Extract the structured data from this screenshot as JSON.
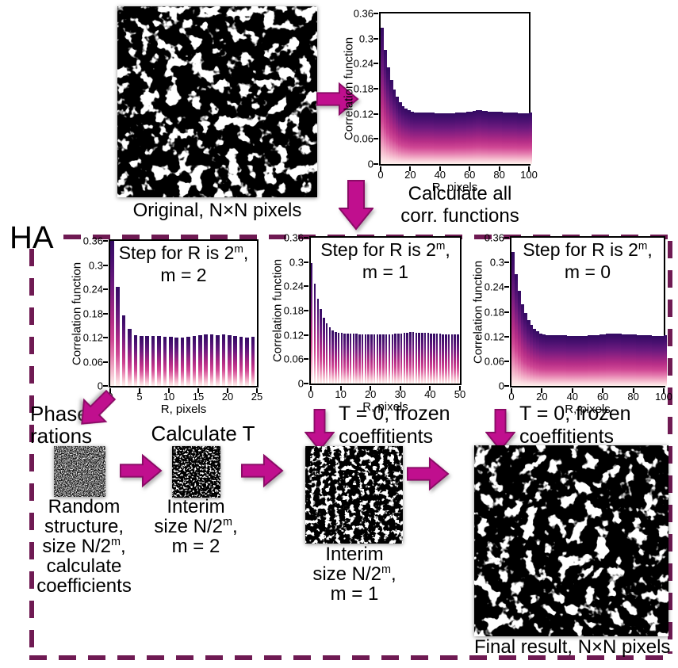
{
  "colors": {
    "arrow_fill": "#c00f8e",
    "arrow_stroke": "#8a0b66",
    "dashed_border": "#6f1a53",
    "bar_top": "#330b62",
    "bar_mid": "#b62e87",
    "bar_bottom": "#fdf0ec"
  },
  "top_section": {
    "original_label": "Original, N×N pixels",
    "calc_line1": "Calculate all",
    "calc_line2": "corr. functions"
  },
  "ha_box": {
    "label": "HA",
    "phase_line1": "Phase",
    "phase_line2": "rations",
    "calc_t_label": "Calculate T",
    "t0_line1": "T = 0, frozen",
    "t0_line2": "coeffitients",
    "random_label_lines": [
      {
        "pre": "Random"
      },
      {
        "pre": "structure,"
      },
      {
        "pre": "size N/2",
        "sup": "m",
        "post": ","
      },
      {
        "pre": "calculate"
      },
      {
        "pre": "coefficients"
      }
    ],
    "interim2_label_lines": [
      {
        "pre": "Interim"
      },
      {
        "pre": "size N/2",
        "sup": "m",
        "post": ","
      },
      {
        "pre": "m = 2"
      }
    ],
    "interim1_label_lines": [
      {
        "pre": "Interim"
      },
      {
        "pre": "size N/2",
        "sup": "m",
        "post": ","
      },
      {
        "pre": "m = 1"
      }
    ],
    "final_label": "Final result, N×N pixels"
  },
  "chart_data": [
    {
      "id": "all",
      "type": "bar",
      "title": null,
      "ylabel": "Correlation function",
      "xlabel": "R, pixels",
      "ylim": [
        0,
        0.36
      ],
      "y_ticks": [
        0,
        0.06,
        0.12,
        0.18,
        0.24,
        0.3,
        0.36
      ],
      "x_ticks": [
        0,
        20,
        40,
        60,
        80,
        100
      ],
      "x_range": [
        0,
        100
      ],
      "x_step": 2,
      "bar_gap_frac": 0,
      "values": [
        0.325,
        0.272,
        0.232,
        0.2,
        0.178,
        0.161,
        0.148,
        0.139,
        0.132,
        0.128,
        0.126,
        0.124,
        0.124,
        0.123,
        0.123,
        0.123,
        0.123,
        0.123,
        0.122,
        0.122,
        0.122,
        0.122,
        0.122,
        0.122,
        0.122,
        0.123,
        0.123,
        0.124,
        0.124,
        0.125,
        0.126,
        0.127,
        0.128,
        0.128,
        0.127,
        0.127,
        0.126,
        0.126,
        0.126,
        0.125,
        0.125,
        0.124,
        0.124,
        0.123,
        0.123,
        0.123,
        0.122,
        0.122,
        0.122,
        0.122,
        0.123
      ]
    },
    {
      "id": "m2",
      "type": "bar",
      "title": {
        "pre": "Step for R is 2",
        "sup": "m",
        "post": ",",
        "line2": "m = 2"
      },
      "ylabel": "Correlation function",
      "xlabel": "R, pixels",
      "ylim": [
        0,
        0.36
      ],
      "y_ticks": [
        0,
        0.06,
        0.12,
        0.18,
        0.24,
        0.3,
        0.36
      ],
      "x_ticks": [
        0,
        5,
        10,
        15,
        20,
        25
      ],
      "x_range": [
        0,
        25
      ],
      "x_step": 1,
      "bar_gap_frac": 0.38,
      "values": [
        0.36,
        0.245,
        0.175,
        0.141,
        0.126,
        0.124,
        0.124,
        0.123,
        0.123,
        0.122,
        0.122,
        0.121,
        0.121,
        0.122,
        0.124,
        0.126,
        0.127,
        0.127,
        0.126,
        0.127,
        0.126,
        0.124,
        0.122,
        0.121,
        0.122
      ]
    },
    {
      "id": "m1",
      "type": "bar",
      "title": {
        "pre": "Step for R is 2",
        "sup": "m",
        "post": ",",
        "line2": "m = 1"
      },
      "ylabel": "Correlation function",
      "xlabel": "R, pixels",
      "ylim": [
        0,
        0.36
      ],
      "y_ticks": [
        0,
        0.06,
        0.12,
        0.18,
        0.24,
        0.3,
        0.36
      ],
      "x_ticks": [
        0,
        10,
        20,
        30,
        40,
        50
      ],
      "x_range": [
        0,
        50
      ],
      "x_step": 1,
      "bar_gap_frac": 0.34,
      "values": [
        0.298,
        0.246,
        0.21,
        0.183,
        0.163,
        0.148,
        0.138,
        0.131,
        0.128,
        0.126,
        0.125,
        0.124,
        0.124,
        0.123,
        0.123,
        0.123,
        0.122,
        0.122,
        0.122,
        0.122,
        0.122,
        0.121,
        0.121,
        0.121,
        0.121,
        0.122,
        0.122,
        0.122,
        0.123,
        0.123,
        0.124,
        0.125,
        0.126,
        0.127,
        0.127,
        0.126,
        0.126,
        0.126,
        0.125,
        0.125,
        0.124,
        0.124,
        0.123,
        0.123,
        0.122,
        0.122,
        0.122,
        0.121,
        0.121,
        0.122
      ]
    },
    {
      "id": "m0",
      "type": "bar",
      "title": {
        "pre": "Step for R is 2",
        "sup": "m",
        "post": ",",
        "line2": "m = 0"
      },
      "ylabel": "Correlation function",
      "xlabel": "R, pixels",
      "ylim": [
        0,
        0.36
      ],
      "y_ticks": [
        0,
        0.06,
        0.12,
        0.18,
        0.24,
        0.3,
        0.36
      ],
      "x_ticks": [
        0,
        20,
        40,
        60,
        80,
        100
      ],
      "x_range": [
        0,
        100
      ],
      "x_step": 2,
      "bar_gap_frac": 0,
      "values": [
        0.325,
        0.271,
        0.231,
        0.199,
        0.177,
        0.16,
        0.148,
        0.139,
        0.132,
        0.128,
        0.126,
        0.124,
        0.124,
        0.123,
        0.123,
        0.123,
        0.123,
        0.123,
        0.122,
        0.122,
        0.122,
        0.122,
        0.122,
        0.122,
        0.122,
        0.123,
        0.123,
        0.124,
        0.124,
        0.125,
        0.126,
        0.127,
        0.128,
        0.128,
        0.127,
        0.127,
        0.126,
        0.126,
        0.126,
        0.125,
        0.125,
        0.124,
        0.124,
        0.123,
        0.123,
        0.123,
        0.122,
        0.122,
        0.122,
        0.122,
        0.123
      ]
    }
  ]
}
